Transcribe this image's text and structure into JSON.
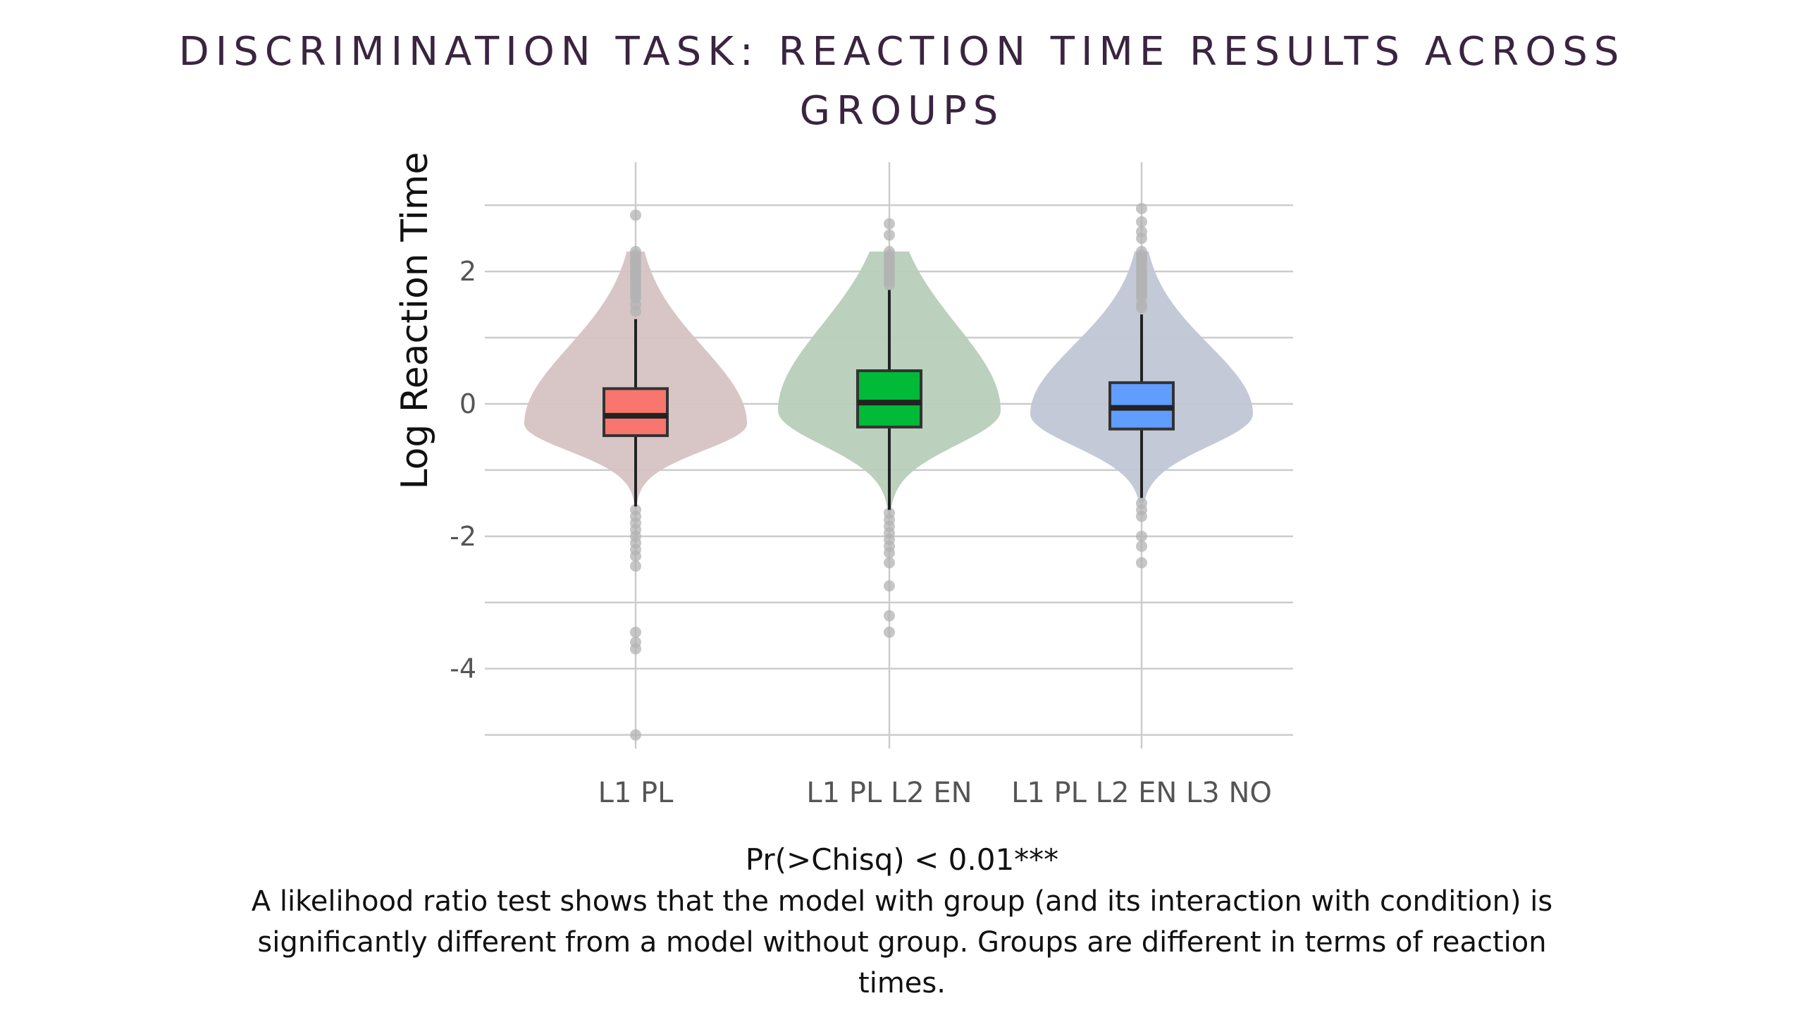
{
  "slide": {
    "title": "DISCRIMINATION TASK: REACTION TIME RESULTS ACROSS GROUPS",
    "stat_line": "Pr(>Chisq) < 0.01***",
    "explanation": "A likelihood ratio test shows that the model with group (and its interaction with condition) is significantly different from a model without group. Groups are different in terms of reaction times."
  },
  "colors": {
    "title": "#3a2440",
    "grid": "#cccccc",
    "axis_text": "#555555",
    "outlier": "#b3b3b3"
  },
  "chart_data": {
    "type": "violin+box",
    "title": "",
    "xlabel": "",
    "ylabel": "Log Reaction Time",
    "ylim": [
      -5.1,
      3.3
    ],
    "yticks": [
      -4,
      -2,
      0,
      2
    ],
    "grid": true,
    "legend": "none",
    "categories": [
      "L1 PL",
      "L1 PL L2 EN",
      "L1 PL L2 EN L3 NO"
    ],
    "groups": [
      {
        "name": "L1 PL",
        "box_color": "#f8766d",
        "violin_color": "#d6c3c3",
        "q1": -0.48,
        "median": -0.18,
        "q3": 0.23,
        "whisker_low": -1.55,
        "whisker_high": 1.28,
        "violin_min": -1.65,
        "violin_max": 2.3,
        "density_peak": -0.3,
        "outliers": [
          2.85,
          2.3,
          2.25,
          2.2,
          2.15,
          2.1,
          2.05,
          2.0,
          1.95,
          1.9,
          1.85,
          1.8,
          1.75,
          1.7,
          1.65,
          1.6,
          1.5,
          1.4,
          -1.6,
          -1.7,
          -1.8,
          -1.9,
          -2.0,
          -2.1,
          -2.2,
          -2.3,
          -2.45,
          -3.45,
          -3.6,
          -3.7,
          -5.0
        ]
      },
      {
        "name": "L1 PL L2 EN",
        "box_color": "#00ba38",
        "violin_color": "#b7cdb9",
        "q1": -0.35,
        "median": 0.02,
        "q3": 0.5,
        "whisker_low": -1.6,
        "whisker_high": 1.72,
        "violin_min": -1.7,
        "violin_max": 2.3,
        "density_peak": -0.1,
        "outliers": [
          2.72,
          2.55,
          2.3,
          2.25,
          2.2,
          2.15,
          2.1,
          2.05,
          2.0,
          1.95,
          1.9,
          1.85,
          1.8,
          -1.65,
          -1.75,
          -1.85,
          -1.95,
          -2.05,
          -2.15,
          -2.25,
          -2.4,
          -2.75,
          -3.2,
          -3.45
        ]
      },
      {
        "name": "L1 PL L2 EN L3 NO",
        "box_color": "#619cff",
        "violin_color": "#c0c6d5",
        "q1": -0.38,
        "median": -0.06,
        "q3": 0.32,
        "whisker_low": -1.42,
        "whisker_high": 1.35,
        "violin_min": -1.5,
        "violin_max": 2.3,
        "density_peak": -0.15,
        "outliers": [
          2.95,
          2.75,
          2.6,
          2.5,
          2.3,
          2.25,
          2.2,
          2.15,
          2.1,
          2.05,
          2.0,
          1.95,
          1.9,
          1.85,
          1.8,
          1.75,
          1.7,
          1.65,
          1.6,
          1.5,
          1.45,
          -1.5,
          -1.6,
          -1.7,
          -2.0,
          -2.15,
          -2.4
        ]
      }
    ]
  }
}
